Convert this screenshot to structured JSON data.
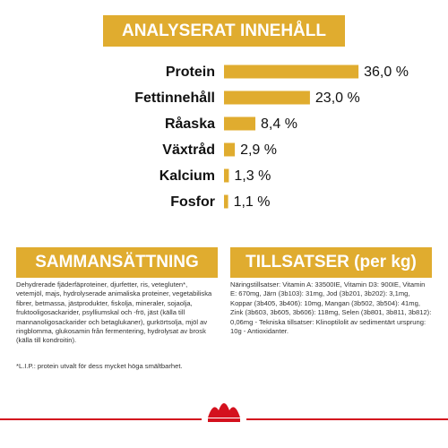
{
  "chart_data": {
    "type": "bar",
    "orientation": "horizontal",
    "title": "ANALYSERAT INNEHÅLL",
    "categories": [
      "Protein",
      "Fettinnehåll",
      "Råaska",
      "Växtråd",
      "Kalcium",
      "Fosfor"
    ],
    "values": [
      36.0,
      23.0,
      8.4,
      2.9,
      1.3,
      1.1
    ],
    "value_labels": [
      "36,0 %",
      "23,0 %",
      "8,4 %",
      "2,9 %",
      "1,3 %",
      "1,1 %"
    ],
    "color": "#e0ac2f"
  },
  "composition": {
    "title": "SAMMANSÄTTNING",
    "text": "Dehydrerade fjäderfäproteiner, djurfetter, ris, vetegluten*, vetemjöl, majs, hydrolyserade animaliska proteiner, vegetabiliska fibrer, betmassa, jästprodukter, fiskolja, mineraler, sojaolja, fruktooligosackarider, psylliumskal och -frö, jäst (källa till mannanoligosackarider och betaglukaner), gurkörtsolja, mjöl av ringblomma, glukosamin från fermentering, hydrolysat av brosk (källa till kondroitin).",
    "footnote": "*L.I.P.: protein utvalt för dess mycket höga smältbarhet."
  },
  "additives": {
    "title": "TILLSATSER (per kg)",
    "text": "Näringstillsatser: Vitamin A: 33500IE, Vitamin D3: 900IE, Vitamin E: 670mg, Järn (3b103): 31mg, Jod (3b201, 3b202): 3,1mg, Koppar (3b405, 3b406): 10mg, Mangan (3b502, 3b504): 41mg, Zink (3b603, 3b605, 3b606): 118mg, Selen (3b801, 3b811, 3b812): 0,06mg - Tekniska tillsatser: Klinoptilolit av sedimentärt ursprung: 10g - Antioxidanter."
  }
}
